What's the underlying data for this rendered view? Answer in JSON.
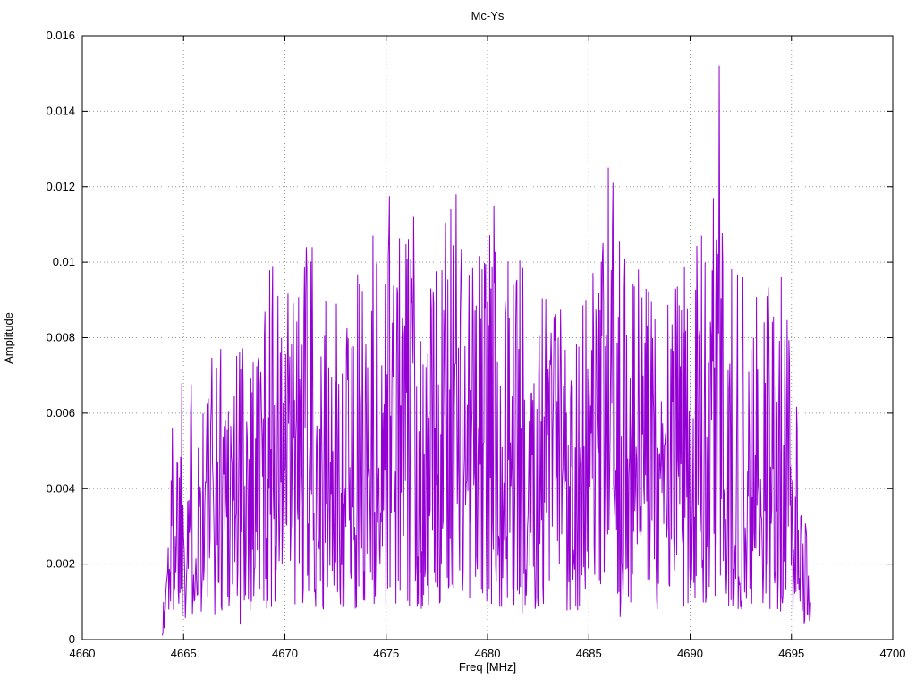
{
  "page": {
    "background": "#ffffff"
  },
  "chart_data": {
    "type": "line",
    "title": "Mc-Ys",
    "xlabel": "Freq [MHz]",
    "ylabel": "Amplitude",
    "xlim": [
      4660,
      4700
    ],
    "ylim": [
      0,
      0.016
    ],
    "x_tick_values": [
      4660,
      4665,
      4670,
      4675,
      4680,
      4685,
      4690,
      4695,
      4700
    ],
    "x_tick_labels": [
      "4660",
      "4665",
      "4670",
      "4675",
      "4680",
      "4685",
      "4690",
      "4695",
      "4700"
    ],
    "y_tick_values": [
      0,
      0.002,
      0.004,
      0.006,
      0.008,
      0.01,
      0.012,
      0.014,
      0.016
    ],
    "y_tick_labels": [
      "0",
      "0.002",
      "0.004",
      "0.006",
      "0.008",
      "0.01",
      "0.012",
      "0.014",
      "0.016"
    ],
    "grid": "dotted",
    "legend": "none",
    "line_color": "#9400d3",
    "series_name": "Mc-Ys",
    "signal": {
      "x_start": 4663.95,
      "x_end": 4695.95,
      "n_points": 1100,
      "seed": 1337,
      "noise_min": 0.08,
      "noise_pow": 1.3,
      "envelope": [
        [
          4663.95,
          0.0006
        ],
        [
          4664.2,
          0.0035
        ],
        [
          4664.5,
          0.0067
        ],
        [
          4665.0,
          0.0069
        ],
        [
          4665.5,
          0.0072
        ],
        [
          4666.3,
          0.0076
        ],
        [
          4667.0,
          0.0088
        ],
        [
          4667.8,
          0.0087
        ],
        [
          4668.6,
          0.009
        ],
        [
          4669.3,
          0.01
        ],
        [
          4670.0,
          0.0093
        ],
        [
          4670.8,
          0.0098
        ],
        [
          4671.4,
          0.0104
        ],
        [
          4672.2,
          0.0086
        ],
        [
          4673.0,
          0.0093
        ],
        [
          4673.8,
          0.01
        ],
        [
          4674.6,
          0.0108
        ],
        [
          4675.2,
          0.0115
        ],
        [
          4676.0,
          0.011
        ],
        [
          4677.0,
          0.0092
        ],
        [
          4678.0,
          0.0112
        ],
        [
          4678.6,
          0.0116
        ],
        [
          4679.4,
          0.0104
        ],
        [
          4680.2,
          0.0112
        ],
        [
          4681.0,
          0.0105
        ],
        [
          4682.0,
          0.0103
        ],
        [
          4683.0,
          0.0097
        ],
        [
          4684.0,
          0.0092
        ],
        [
          4685.0,
          0.0095
        ],
        [
          4686.0,
          0.011
        ],
        [
          4687.0,
          0.0105
        ],
        [
          4688.0,
          0.0098
        ],
        [
          4689.0,
          0.0095
        ],
        [
          4690.0,
          0.0105
        ],
        [
          4691.0,
          0.011
        ],
        [
          4691.6,
          0.0115
        ],
        [
          4692.3,
          0.0098
        ],
        [
          4693.0,
          0.009
        ],
        [
          4694.0,
          0.0097
        ],
        [
          4694.8,
          0.0085
        ],
        [
          4695.3,
          0.006
        ],
        [
          4695.7,
          0.0045
        ],
        [
          4695.95,
          0.0012
        ]
      ],
      "peaks": [
        [
          4691.45,
          0.0152
        ],
        [
          4691.15,
          0.0117
        ],
        [
          4685.95,
          0.0125
        ],
        [
          4686.2,
          0.0121
        ],
        [
          4678.45,
          0.0118
        ],
        [
          4678.2,
          0.0114
        ],
        [
          4675.15,
          0.01175
        ],
        [
          4676.35,
          0.0112
        ],
        [
          4680.3,
          0.0115
        ],
        [
          4674.35,
          0.0107
        ],
        [
          4690.55,
          0.0107
        ],
        [
          4671.05,
          0.0104
        ],
        [
          4671.35,
          0.0104
        ],
        [
          4669.4,
          0.0099
        ],
        [
          4664.9,
          0.0068
        ],
        [
          4692.6,
          0.0096
        ],
        [
          4694.5,
          0.0096
        ]
      ],
      "dips": [
        [
          4664.05,
          0.0003
        ],
        [
          4667.78,
          0.0004
        ],
        [
          4671.9,
          0.0008
        ],
        [
          4681.7,
          0.0007
        ],
        [
          4686.55,
          0.0006
        ],
        [
          4695.9,
          0.0005
        ]
      ]
    }
  }
}
